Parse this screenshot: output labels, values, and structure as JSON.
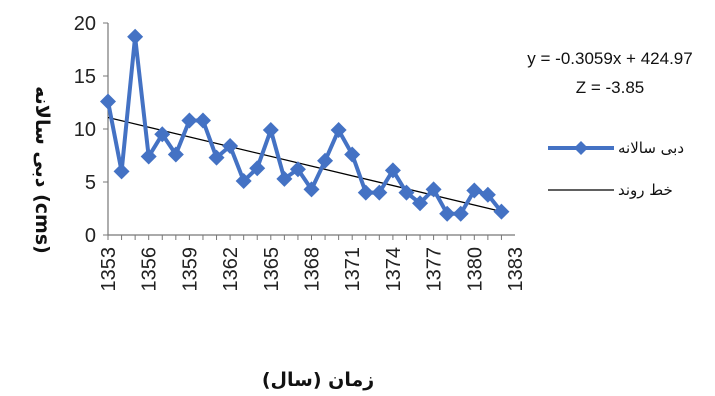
{
  "chart_data": {
    "type": "line",
    "x": [
      1353,
      1354,
      1355,
      1356,
      1357,
      1358,
      1359,
      1360,
      1361,
      1362,
      1363,
      1364,
      1365,
      1366,
      1367,
      1368,
      1369,
      1370,
      1371,
      1372,
      1373,
      1374,
      1375,
      1376,
      1377,
      1378,
      1379,
      1380,
      1381,
      1382
    ],
    "series": [
      {
        "name": "دبی سالانه",
        "color": "#4472C4",
        "marker": "diamond",
        "values": [
          12.6,
          6.0,
          18.7,
          7.4,
          9.5,
          7.6,
          10.8,
          10.8,
          7.3,
          8.4,
          5.1,
          6.3,
          9.9,
          5.3,
          6.2,
          4.3,
          7.0,
          9.9,
          7.6,
          4.0,
          4.0,
          6.1,
          4.0,
          3.0,
          4.3,
          2.0,
          2.0,
          4.2,
          3.8,
          2.2
        ]
      }
    ],
    "trendline": {
      "name": "خط روند",
      "color": "#000000",
      "slope": -0.3059,
      "intercept": 424.97
    },
    "xlabel": "زمان (سال)",
    "ylabel": "دبی سالانه    (cms)",
    "xticks": [
      1353,
      1356,
      1359,
      1362,
      1365,
      1368,
      1371,
      1374,
      1377,
      1380,
      1383
    ],
    "yticks": [
      0,
      5,
      10,
      15,
      20
    ],
    "xlim": [
      1353,
      1383
    ],
    "ylim": [
      0,
      20
    ],
    "grid": false,
    "legend_position": "right",
    "annotations": [
      "y = -0.3059x + 424.97",
      "Z = -3.85"
    ]
  }
}
